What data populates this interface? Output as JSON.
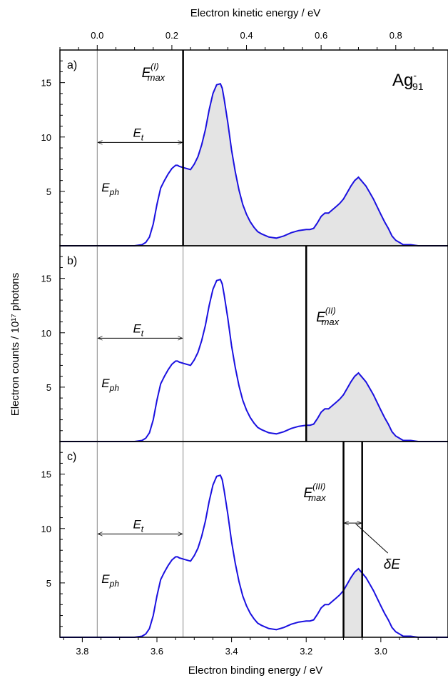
{
  "chart_data": {
    "type": "line",
    "xlabel": "Electron binding energy / eV",
    "x2label": "Electron kinetic energy / eV",
    "ylabel": "Electron counts / 10¹⁷ photons",
    "xlim": [
      3.86,
      2.82
    ],
    "x2lim": [
      -0.1,
      0.94
    ],
    "ylim": [
      0,
      18
    ],
    "x_ticks": [
      "3.8",
      "3.6",
      "3.4",
      "3.2",
      "3.0"
    ],
    "x2_ticks": [
      "0.0",
      "0.2",
      "0.4",
      "0.6",
      "0.8"
    ],
    "y_ticks": [
      "5",
      "10",
      "15"
    ],
    "species": {
      "base": "Ag",
      "sub": "91",
      "sup": "-"
    },
    "curve_color": "#1a10e0",
    "fill_color": "#e4e4e4",
    "photon_energy_label": "Eph",
    "threshold_label": "Et",
    "photon_energy_x": 3.76,
    "threshold_x": 3.53,
    "spectrum": {
      "x": [
        3.66,
        3.64,
        3.63,
        3.62,
        3.61,
        3.6,
        3.59,
        3.58,
        3.57,
        3.56,
        3.55,
        3.545,
        3.54,
        3.53,
        3.52,
        3.51,
        3.5,
        3.49,
        3.48,
        3.47,
        3.46,
        3.45,
        3.44,
        3.43,
        3.425,
        3.42,
        3.41,
        3.4,
        3.39,
        3.38,
        3.37,
        3.36,
        3.35,
        3.34,
        3.33,
        3.32,
        3.3,
        3.28,
        3.26,
        3.24,
        3.22,
        3.2,
        3.19,
        3.18,
        3.17,
        3.16,
        3.15,
        3.14,
        3.13,
        3.12,
        3.11,
        3.1,
        3.09,
        3.08,
        3.07,
        3.06,
        3.05,
        3.04,
        3.03,
        3.02,
        3.01,
        3.0,
        2.99,
        2.98,
        2.97,
        2.96,
        2.95,
        2.94,
        2.92,
        2.9,
        2.88,
        2.86,
        2.84,
        2.82
      ],
      "y": [
        0.0,
        0.1,
        0.3,
        0.8,
        2.0,
        3.8,
        5.3,
        6.0,
        6.6,
        7.1,
        7.4,
        7.4,
        7.3,
        7.2,
        7.1,
        7.0,
        7.5,
        8.2,
        9.3,
        10.7,
        12.5,
        14.0,
        14.8,
        14.9,
        14.5,
        13.5,
        11.3,
        8.8,
        6.8,
        5.1,
        3.8,
        2.9,
        2.2,
        1.7,
        1.3,
        1.1,
        0.8,
        0.7,
        0.9,
        1.2,
        1.4,
        1.5,
        1.5,
        1.6,
        2.1,
        2.7,
        3.0,
        3.0,
        3.3,
        3.6,
        3.9,
        4.3,
        4.9,
        5.5,
        6.0,
        6.3,
        5.9,
        5.5,
        4.9,
        4.3,
        3.6,
        2.9,
        2.2,
        1.6,
        0.9,
        0.5,
        0.3,
        0.1,
        0.1,
        0.0,
        0.0,
        0.0,
        0.0,
        0.0
      ]
    },
    "panels": [
      {
        "label": "a)",
        "emax_label": "Emax",
        "emax_sup": "(I)",
        "emax_x": 3.53,
        "show_species": true
      },
      {
        "label": "b)",
        "emax_label": "Emax",
        "emax_sup": "(II)",
        "emax_x": 3.2,
        "show_species": false
      },
      {
        "label": "c)",
        "emax_label": "Emax",
        "emax_sup": "(III)",
        "emax_x": 3.1,
        "emax2_x": 3.05,
        "delta_label": "δE",
        "show_species": false
      }
    ]
  }
}
